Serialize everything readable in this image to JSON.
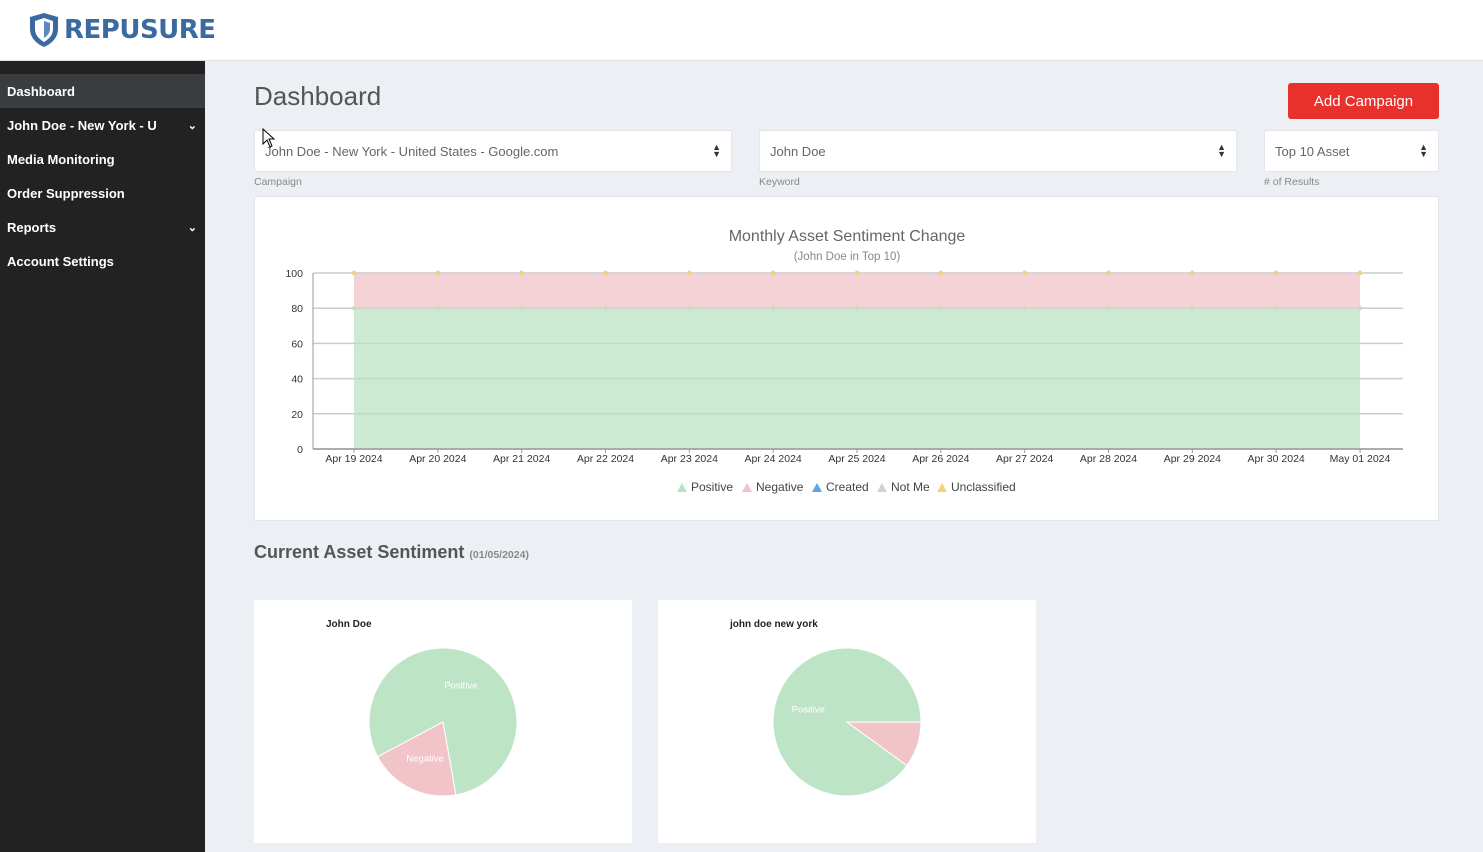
{
  "brand": {
    "name": "REPUSURE",
    "shield_color": "#3b6aa0"
  },
  "sidebar": {
    "items": [
      {
        "label": "Dashboard",
        "active": true,
        "expandable": false
      },
      {
        "label": "John Doe - New York - U",
        "active": false,
        "expandable": true
      },
      {
        "label": "Media Monitoring",
        "active": false,
        "expandable": false
      },
      {
        "label": "Order Suppression",
        "active": false,
        "expandable": false
      },
      {
        "label": "Reports",
        "active": false,
        "expandable": true
      },
      {
        "label": "Account Settings",
        "active": false,
        "expandable": false
      }
    ]
  },
  "header": {
    "title": "Dashboard",
    "add_campaign_label": "Add Campaign",
    "accent": "#e8312a"
  },
  "filters": {
    "campaign": {
      "value": "John Doe - New York - United States - Google.com",
      "label": "Campaign"
    },
    "keyword": {
      "value": "John Doe",
      "label": "Keyword"
    },
    "results": {
      "value": "Top 10 Asset",
      "label": "# of Results"
    }
  },
  "chart_data": [
    {
      "type": "area",
      "title": "Monthly Asset Sentiment Change",
      "subtitle": "(John Doe in Top 10)",
      "categories": [
        "Apr 19 2024",
        "Apr 20 2024",
        "Apr 21 2024",
        "Apr 22 2024",
        "Apr 23 2024",
        "Apr 24 2024",
        "Apr 25 2024",
        "Apr 26 2024",
        "Apr 27 2024",
        "Apr 28 2024",
        "Apr 29 2024",
        "Apr 30 2024",
        "May 01 2024"
      ],
      "stacked": true,
      "ylim": [
        0,
        100
      ],
      "yticks": [
        0,
        20,
        40,
        60,
        80,
        100
      ],
      "grid": true,
      "legend_position": "bottom",
      "series": [
        {
          "name": "Positive",
          "color": "#b9e3c2",
          "values": [
            80,
            80,
            80,
            80,
            80,
            80,
            80,
            80,
            80,
            80,
            80,
            80,
            80
          ]
        },
        {
          "name": "Negative",
          "color": "#f1c3c8",
          "values": [
            20,
            20,
            20,
            20,
            20,
            20,
            20,
            20,
            20,
            20,
            20,
            20,
            20
          ]
        },
        {
          "name": "Created",
          "color": "#5aa6e6",
          "values": [
            0,
            0,
            0,
            0,
            0,
            0,
            0,
            0,
            0,
            0,
            0,
            0,
            0
          ]
        },
        {
          "name": "Not Me",
          "color": "#cfd2d6",
          "values": [
            0,
            0,
            0,
            0,
            0,
            0,
            0,
            0,
            0,
            0,
            0,
            0,
            0
          ]
        },
        {
          "name": "Unclassified",
          "color": "#f5d37a",
          "values": [
            0,
            0,
            0,
            0,
            0,
            0,
            0,
            0,
            0,
            0,
            0,
            0,
            0
          ]
        }
      ]
    },
    {
      "type": "pie",
      "title": "John Doe",
      "slices": [
        {
          "name": "Positive",
          "value": 80,
          "color": "#bde5c5",
          "labeled": true
        },
        {
          "name": "Negative",
          "value": 20,
          "color": "#f0c4c8",
          "labeled": true
        }
      ]
    },
    {
      "type": "pie",
      "title": "john doe new york",
      "slices": [
        {
          "name": "Positive",
          "value": 90,
          "color": "#bde5c5",
          "labeled": true
        },
        {
          "name": "Negative",
          "value": 10,
          "color": "#f0c4c8",
          "labeled": false
        }
      ]
    }
  ],
  "current_sentiment": {
    "title": "Current Asset Sentiment",
    "date": "(01/05/2024)"
  }
}
